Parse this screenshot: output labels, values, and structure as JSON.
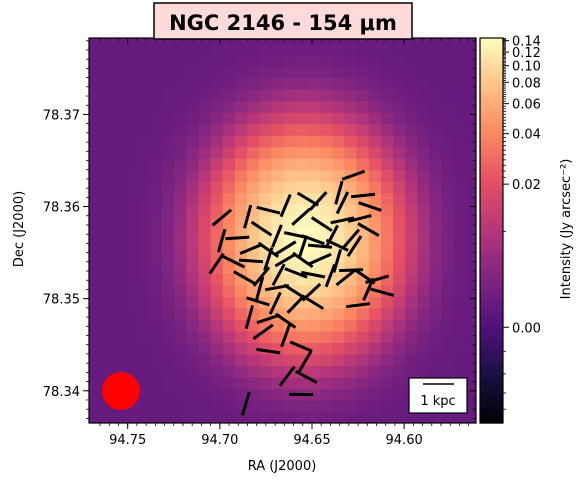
{
  "chart_data": {
    "type": "heatmap",
    "title": "NGC 2146 - 154 μm",
    "xlabel": "RA (J2000)",
    "ylabel": "Dec (J2000)",
    "colorbar_label": "Intensity (Jy arcsec⁻²)",
    "colormap": "magma",
    "x_ticks": [
      "94.75",
      "94.70",
      "94.65",
      "94.60"
    ],
    "y_ticks": [
      "78.34",
      "78.35",
      "78.36",
      "78.37"
    ],
    "colorbar_ticks": [
      "0.00",
      "0.02",
      "0.04",
      "0.06",
      "0.08",
      "0.10",
      "0.12",
      "0.14"
    ],
    "xlim": [
      94.771,
      94.561
    ],
    "ylim": [
      78.3365,
      78.3783
    ],
    "colorbar_range": [
      -0.01,
      0.145
    ],
    "colorbar_scale": "asinh",
    "scale_bar_label": "1 kpc",
    "beam_color": "#ff0000",
    "vector_color": "#000000",
    "intensity_peak": {
      "ra": 94.654,
      "dec": 78.3565,
      "value": 0.14
    },
    "polarization_vectors": [
      {
        "ra": 94.6275,
        "dec": 78.3634
      },
      {
        "ra": 94.6354,
        "dec": 78.3615
      },
      {
        "ra": 94.6223,
        "dec": 78.3612
      },
      {
        "ra": 94.6522,
        "dec": 78.3608
      },
      {
        "ra": 94.6466,
        "dec": 78.3606
      },
      {
        "ra": 94.6335,
        "dec": 78.3604
      },
      {
        "ra": 94.6185,
        "dec": 78.36
      },
      {
        "ra": 94.6737,
        "dec": 78.3596
      },
      {
        "ra": 94.6643,
        "dec": 78.3601
      },
      {
        "ra": 94.6559,
        "dec": 78.3589
      },
      {
        "ra": 94.6447,
        "dec": 78.3581
      },
      {
        "ra": 94.6335,
        "dec": 78.3585
      },
      {
        "ra": 94.6849,
        "dec": 78.3589
      },
      {
        "ra": 94.6241,
        "dec": 78.3587
      },
      {
        "ra": 94.6774,
        "dec": 78.3576
      },
      {
        "ra": 94.6989,
        "dec": 78.3588
      },
      {
        "ra": 94.669,
        "dec": 78.3568
      },
      {
        "ra": 94.6587,
        "dec": 78.3569
      },
      {
        "ra": 94.6494,
        "dec": 78.3564
      },
      {
        "ra": 94.6391,
        "dec": 78.3568
      },
      {
        "ra": 94.6288,
        "dec": 78.3565
      },
      {
        "ra": 94.6194,
        "dec": 78.3575
      },
      {
        "ra": 94.6905,
        "dec": 78.3566
      },
      {
        "ra": 94.699,
        "dec": 78.3563
      },
      {
        "ra": 94.683,
        "dec": 78.3554
      },
      {
        "ra": 94.6737,
        "dec": 78.3553
      },
      {
        "ra": 94.6643,
        "dec": 78.3555
      },
      {
        "ra": 94.655,
        "dec": 78.3556
      },
      {
        "ra": 94.6456,
        "dec": 78.3557
      },
      {
        "ra": 94.6363,
        "dec": 78.3558
      },
      {
        "ra": 94.6269,
        "dec": 78.3557
      },
      {
        "ra": 94.7018,
        "dec": 78.3538
      },
      {
        "ra": 94.6924,
        "dec": 78.354
      },
      {
        "ra": 94.6831,
        "dec": 78.3541
      },
      {
        "ra": 94.6737,
        "dec": 78.3543
      },
      {
        "ra": 94.6643,
        "dec": 78.3542
      },
      {
        "ra": 94.655,
        "dec": 78.3542
      },
      {
        "ra": 94.6456,
        "dec": 78.3543
      },
      {
        "ra": 94.6363,
        "dec": 78.3541
      },
      {
        "ra": 94.6288,
        "dec": 78.3531
      },
      {
        "ra": 94.6868,
        "dec": 78.3523
      },
      {
        "ra": 94.6774,
        "dec": 78.3524
      },
      {
        "ra": 94.6681,
        "dec": 78.3526
      },
      {
        "ra": 94.6587,
        "dec": 78.3528
      },
      {
        "ra": 94.6494,
        "dec": 78.3526
      },
      {
        "ra": 94.64,
        "dec": 78.3525
      },
      {
        "ra": 94.6316,
        "dec": 78.3523
      },
      {
        "ra": 94.6213,
        "dec": 78.3524
      },
      {
        "ra": 94.6147,
        "dec": 78.3521
      },
      {
        "ra": 94.6784,
        "dec": 78.3511
      },
      {
        "ra": 94.669,
        "dec": 78.3512
      },
      {
        "ra": 94.6597,
        "dec": 78.3508
      },
      {
        "ra": 94.6503,
        "dec": 78.3507
      },
      {
        "ra": 94.6194,
        "dec": 78.351
      },
      {
        "ra": 94.6119,
        "dec": 78.3507
      },
      {
        "ra": 94.6793,
        "dec": 78.3497
      },
      {
        "ra": 94.6699,
        "dec": 78.3495
      },
      {
        "ra": 94.6587,
        "dec": 78.3494
      },
      {
        "ra": 94.6494,
        "dec": 78.3496
      },
      {
        "ra": 94.625,
        "dec": 78.3493
      },
      {
        "ra": 94.684,
        "dec": 78.348
      },
      {
        "ra": 94.6737,
        "dec": 78.3478
      },
      {
        "ra": 94.6643,
        "dec": 78.3476
      },
      {
        "ra": 94.6765,
        "dec": 78.3464
      },
      {
        "ra": 94.6643,
        "dec": 78.346
      },
      {
        "ra": 94.6737,
        "dec": 78.3443
      },
      {
        "ra": 94.6559,
        "dec": 78.3448
      },
      {
        "ra": 94.654,
        "dec": 78.3431
      },
      {
        "ra": 94.6634,
        "dec": 78.3416
      },
      {
        "ra": 94.6531,
        "dec": 78.3415
      },
      {
        "ra": 94.6559,
        "dec": 78.3396
      },
      {
        "ra": 94.6859,
        "dec": 78.3386
      }
    ]
  }
}
